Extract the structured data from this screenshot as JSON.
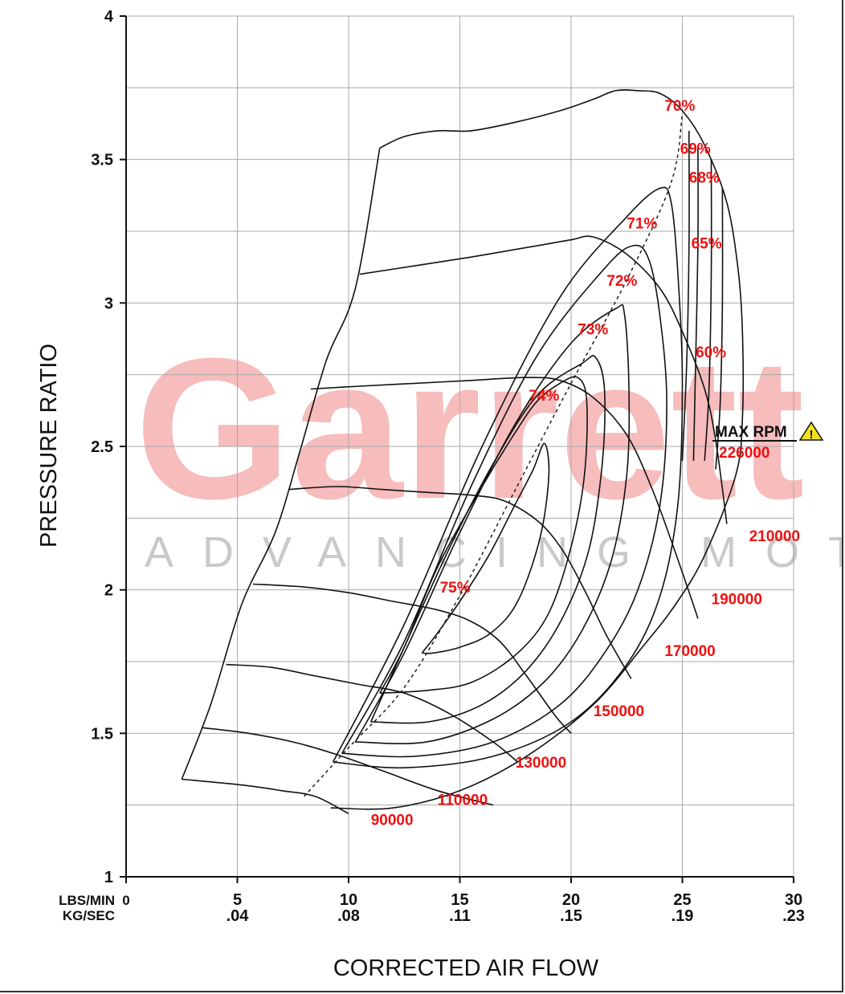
{
  "watermark": {
    "brand": "Garrett",
    "tagline": "ADVANCING MOTION"
  },
  "colors": {
    "label": "#ee1111",
    "watermark": "#f7bcbc",
    "tagline": "#c9c9c9",
    "warning": "#f2e21d"
  },
  "chart_data": {
    "type": "line",
    "xlabel": "CORRECTED AIR FLOW",
    "ylabel": "PRESSURE RATIO",
    "x_unit_labels": [
      "LBS/MIN",
      "KG/SEC"
    ],
    "x_ticks": [
      {
        "lbs": "0",
        "kg": ""
      },
      {
        "lbs": "5",
        "kg": ".04"
      },
      {
        "lbs": "10",
        "kg": ".08"
      },
      {
        "lbs": "15",
        "kg": ".11"
      },
      {
        "lbs": "20",
        "kg": ".15"
      },
      {
        "lbs": "25",
        "kg": ".19"
      },
      {
        "lbs": "30",
        "kg": ".23"
      }
    ],
    "y_ticks": [
      "1",
      "1.5",
      "2",
      "2.5",
      "3",
      "3.5",
      "4"
    ],
    "xlim": [
      0,
      30
    ],
    "ylim": [
      1,
      4
    ],
    "grid": true,
    "max_rpm": {
      "label": "MAX RPM",
      "value": "226000",
      "warning_symbol": "!"
    },
    "speed_lines": [
      {
        "label": "90000",
        "points": [
          [
            2.5,
            1.34
          ],
          [
            5.2,
            1.32
          ],
          [
            7.0,
            1.3
          ],
          [
            8.5,
            1.28
          ],
          [
            10.0,
            1.22
          ]
        ]
      },
      {
        "label": "110000",
        "points": [
          [
            3.4,
            1.52
          ],
          [
            5.5,
            1.5
          ],
          [
            7.5,
            1.47
          ],
          [
            9.3,
            1.43
          ],
          [
            11.5,
            1.37
          ],
          [
            14.0,
            1.3
          ],
          [
            16.5,
            1.25
          ]
        ]
      },
      {
        "label": "130000",
        "points": [
          [
            4.5,
            1.74
          ],
          [
            6.5,
            1.73
          ],
          [
            8.5,
            1.7
          ],
          [
            10.5,
            1.67
          ],
          [
            12.5,
            1.64
          ],
          [
            14.5,
            1.57
          ],
          [
            16.5,
            1.47
          ],
          [
            17.6,
            1.4
          ]
        ]
      },
      {
        "label": "150000",
        "points": [
          [
            5.7,
            2.02
          ],
          [
            8.0,
            2.01
          ],
          [
            10.0,
            1.99
          ],
          [
            12.0,
            1.96
          ],
          [
            14.0,
            1.93
          ],
          [
            15.5,
            1.89
          ],
          [
            16.8,
            1.82
          ],
          [
            18.0,
            1.7
          ],
          [
            19.3,
            1.56
          ],
          [
            20.0,
            1.5
          ]
        ]
      },
      {
        "label": "170000",
        "points": [
          [
            7.3,
            2.35
          ],
          [
            9.5,
            2.36
          ],
          [
            11.5,
            2.35
          ],
          [
            13.5,
            2.34
          ],
          [
            15.5,
            2.33
          ],
          [
            17.0,
            2.31
          ],
          [
            18.5,
            2.24
          ],
          [
            19.6,
            2.14
          ],
          [
            20.6,
            2.0
          ],
          [
            21.6,
            1.84
          ],
          [
            22.7,
            1.69
          ]
        ]
      },
      {
        "label": "190000",
        "points": [
          [
            8.3,
            2.7
          ],
          [
            10.5,
            2.71
          ],
          [
            13.0,
            2.72
          ],
          [
            15.5,
            2.73
          ],
          [
            18.0,
            2.74
          ],
          [
            19.5,
            2.73
          ],
          [
            21.0,
            2.67
          ],
          [
            22.5,
            2.54
          ],
          [
            23.6,
            2.36
          ],
          [
            24.6,
            2.15
          ],
          [
            25.4,
            1.97
          ],
          [
            25.7,
            1.9
          ]
        ]
      },
      {
        "label": "210000",
        "points": [
          [
            10.5,
            3.1
          ],
          [
            13.0,
            3.13
          ],
          [
            15.5,
            3.16
          ],
          [
            18.5,
            3.2
          ],
          [
            20.0,
            3.22
          ],
          [
            21.0,
            3.23
          ],
          [
            22.5,
            3.17
          ],
          [
            24.0,
            3.05
          ],
          [
            25.0,
            2.9
          ],
          [
            26.0,
            2.7
          ],
          [
            26.5,
            2.52
          ],
          [
            27.0,
            2.23
          ]
        ]
      },
      {
        "label": "226000",
        "points": [
          [
            11.4,
            3.54
          ],
          [
            12.5,
            3.58
          ],
          [
            14.0,
            3.6
          ],
          [
            15.5,
            3.6
          ],
          [
            17.5,
            3.63
          ],
          [
            19.5,
            3.67
          ],
          [
            21.0,
            3.71
          ],
          [
            22.0,
            3.74
          ],
          [
            23.0,
            3.74
          ],
          [
            24.0,
            3.73
          ],
          [
            25.0,
            3.67
          ],
          [
            26.0,
            3.55
          ],
          [
            27.0,
            3.35
          ],
          [
            27.5,
            3.12
          ],
          [
            27.7,
            2.9
          ],
          [
            27.7,
            2.6
          ],
          [
            27.4,
            2.4
          ],
          [
            26.0,
            2.12
          ],
          [
            24.7,
            1.95
          ],
          [
            23.2,
            1.8
          ],
          [
            21.0,
            1.6
          ],
          [
            18.0,
            1.42
          ],
          [
            15.0,
            1.3
          ],
          [
            12.0,
            1.24
          ],
          [
            9.2,
            1.24
          ]
        ]
      },
      {
        "label": "",
        "points": [
          [
            2.5,
            1.34
          ],
          [
            3.8,
            1.6
          ],
          [
            5.2,
            1.95
          ],
          [
            6.7,
            2.2
          ],
          [
            7.8,
            2.48
          ],
          [
            9.0,
            2.8
          ],
          [
            10.3,
            3.05
          ],
          [
            11.4,
            3.54
          ]
        ]
      }
    ],
    "efficiency_islands": [
      {
        "label": "75%",
        "points": [
          [
            13.3,
            1.78
          ],
          [
            14.0,
            1.85
          ],
          [
            15.0,
            1.96
          ],
          [
            16.3,
            2.12
          ],
          [
            17.5,
            2.3
          ],
          [
            18.3,
            2.42
          ],
          [
            18.8,
            2.51
          ],
          [
            19.0,
            2.4
          ],
          [
            18.6,
            2.18
          ],
          [
            17.6,
            1.96
          ],
          [
            16.4,
            1.85
          ],
          [
            15.0,
            1.8
          ],
          [
            13.8,
            1.78
          ],
          [
            13.3,
            1.78
          ]
        ]
      },
      {
        "label": "74%",
        "points": [
          [
            11.4,
            1.64
          ],
          [
            12.5,
            1.8
          ],
          [
            14.0,
            2.08
          ],
          [
            16.0,
            2.36
          ],
          [
            17.5,
            2.55
          ],
          [
            18.5,
            2.66
          ],
          [
            19.5,
            2.72
          ],
          [
            20.3,
            2.74
          ],
          [
            20.7,
            2.66
          ],
          [
            20.6,
            2.4
          ],
          [
            20.0,
            2.15
          ],
          [
            19.0,
            1.92
          ],
          [
            17.6,
            1.78
          ],
          [
            15.6,
            1.68
          ],
          [
            13.6,
            1.65
          ],
          [
            11.4,
            1.64
          ]
        ]
      },
      {
        "label": "73%",
        "points": [
          [
            11.0,
            1.54
          ],
          [
            12.5,
            1.8
          ],
          [
            14.5,
            2.14
          ],
          [
            16.5,
            2.44
          ],
          [
            18.5,
            2.68
          ],
          [
            20.5,
            2.79
          ],
          [
            21.1,
            2.81
          ],
          [
            21.5,
            2.7
          ],
          [
            21.4,
            2.44
          ],
          [
            20.8,
            2.14
          ],
          [
            19.6,
            1.9
          ],
          [
            18.0,
            1.72
          ],
          [
            16.0,
            1.6
          ],
          [
            13.6,
            1.54
          ],
          [
            11.0,
            1.54
          ]
        ]
      },
      {
        "label": "72%",
        "points": [
          [
            10.3,
            1.47
          ],
          [
            12.5,
            1.78
          ],
          [
            15.0,
            2.2
          ],
          [
            17.5,
            2.58
          ],
          [
            20.0,
            2.86
          ],
          [
            22.0,
            2.98
          ],
          [
            22.4,
            2.96
          ],
          [
            22.6,
            2.7
          ],
          [
            22.5,
            2.4
          ],
          [
            21.8,
            2.1
          ],
          [
            20.5,
            1.86
          ],
          [
            18.8,
            1.68
          ],
          [
            16.5,
            1.55
          ],
          [
            13.5,
            1.47
          ],
          [
            10.3,
            1.47
          ]
        ]
      },
      {
        "label": "71%",
        "points": [
          [
            9.7,
            1.43
          ],
          [
            12.5,
            1.82
          ],
          [
            15.5,
            2.36
          ],
          [
            18.5,
            2.82
          ],
          [
            21.5,
            3.12
          ],
          [
            22.8,
            3.2
          ],
          [
            23.5,
            3.15
          ],
          [
            24.0,
            2.95
          ],
          [
            24.3,
            2.65
          ],
          [
            24.0,
            2.3
          ],
          [
            23.0,
            2.0
          ],
          [
            21.5,
            1.78
          ],
          [
            19.5,
            1.6
          ],
          [
            16.5,
            1.47
          ],
          [
            13.0,
            1.42
          ],
          [
            9.7,
            1.43
          ]
        ]
      },
      {
        "label": "70%",
        "points": [
          [
            9.3,
            1.4
          ],
          [
            12.5,
            1.88
          ],
          [
            16.0,
            2.5
          ],
          [
            19.5,
            3.02
          ],
          [
            22.5,
            3.3
          ],
          [
            24.0,
            3.4
          ],
          [
            24.5,
            3.35
          ],
          [
            24.8,
            3.1
          ],
          [
            25.0,
            2.72
          ],
          [
            24.8,
            2.3
          ],
          [
            24.0,
            1.98
          ],
          [
            22.5,
            1.74
          ],
          [
            20.0,
            1.54
          ],
          [
            16.5,
            1.42
          ],
          [
            12.5,
            1.38
          ],
          [
            9.3,
            1.4
          ]
        ]
      }
    ],
    "efficiency_lines": [
      {
        "label": "69%",
        "points": [
          [
            25.3,
            3.6
          ],
          [
            25.3,
            3.2
          ],
          [
            25.2,
            2.8
          ],
          [
            25.0,
            2.45
          ]
        ]
      },
      {
        "label": "68%",
        "points": [
          [
            25.7,
            3.55
          ],
          [
            25.7,
            3.2
          ],
          [
            25.6,
            2.8
          ],
          [
            25.5,
            2.45
          ]
        ]
      },
      {
        "label": "65%",
        "points": [
          [
            26.3,
            3.5
          ],
          [
            26.3,
            3.1
          ],
          [
            26.2,
            2.7
          ],
          [
            26.0,
            2.45
          ]
        ]
      },
      {
        "label": "60%",
        "points": [
          [
            26.8,
            3.4
          ],
          [
            26.8,
            3.0
          ],
          [
            26.7,
            2.65
          ],
          [
            26.5,
            2.42
          ]
        ]
      }
    ],
    "surge_line": {
      "points": [
        [
          8.0,
          1.28
        ],
        [
          10.0,
          1.45
        ],
        [
          12.5,
          1.66
        ],
        [
          15.0,
          1.98
        ],
        [
          17.5,
          2.35
        ],
        [
          20.0,
          2.72
        ],
        [
          22.5,
          3.08
        ],
        [
          24.5,
          3.42
        ],
        [
          25.0,
          3.66
        ]
      ]
    },
    "annotations": [
      {
        "text": "90000",
        "x": 11.0,
        "y": 1.18
      },
      {
        "text": "110000",
        "x": 14.0,
        "y": 1.25
      },
      {
        "text": "130000",
        "x": 17.5,
        "y": 1.38
      },
      {
        "text": "150000",
        "x": 21.0,
        "y": 1.56
      },
      {
        "text": "170000",
        "x": 24.2,
        "y": 1.77
      },
      {
        "text": "190000",
        "x": 26.3,
        "y": 1.95
      },
      {
        "text": "210000",
        "x": 28.0,
        "y": 2.17
      },
      {
        "text": "70%",
        "x": 24.2,
        "y": 3.67
      },
      {
        "text": "69%",
        "x": 24.9,
        "y": 3.52
      },
      {
        "text": "68%",
        "x": 25.3,
        "y": 3.42
      },
      {
        "text": "71%",
        "x": 22.5,
        "y": 3.26
      },
      {
        "text": "65%",
        "x": 25.4,
        "y": 3.19
      },
      {
        "text": "72%",
        "x": 21.6,
        "y": 3.06
      },
      {
        "text": "73%",
        "x": 20.3,
        "y": 2.89
      },
      {
        "text": "60%",
        "x": 25.6,
        "y": 2.81
      },
      {
        "text": "74%",
        "x": 18.1,
        "y": 2.66
      },
      {
        "text": "75%",
        "x": 14.1,
        "y": 1.99
      }
    ]
  }
}
